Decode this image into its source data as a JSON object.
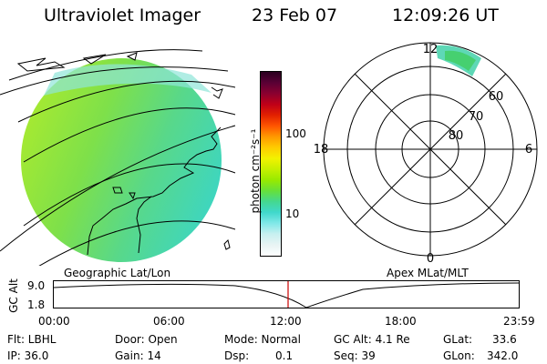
{
  "header": {
    "title": "Ultraviolet Imager",
    "date": "23 Feb 07",
    "time": "12:09:26 UT"
  },
  "colorbar": {
    "label": "photon cm⁻²s⁻¹",
    "ticks": [
      "100",
      "10"
    ],
    "colors": [
      "#2a0020",
      "#5a0035",
      "#8a0030",
      "#c00018",
      "#e22000",
      "#ff5500",
      "#ff9900",
      "#ffcc00",
      "#f2f200",
      "#c6f000",
      "#98ea00",
      "#66e03a",
      "#44d890",
      "#40d8cc",
      "#80e8e8",
      "#c8f0f0",
      "#e8f4f4",
      "#ffffff"
    ]
  },
  "polar_plot": {
    "mlt_labels": {
      "top": "12",
      "bottom": "0",
      "left": "18",
      "right": "6"
    },
    "lat_labels": [
      "60",
      "70",
      "80"
    ]
  },
  "panels": {
    "left_label": "Geographic Lat/Lon",
    "right_label": "Apex MLat/MLT"
  },
  "altitude_plot": {
    "ylabel": "GC Alt",
    "yticks": [
      "9.0",
      "1.8"
    ],
    "xticks": [
      "00:00",
      "06:00",
      "12:00",
      "18:00",
      "23:59"
    ],
    "marker_color": "#cc0000"
  },
  "info": {
    "filter": "Flt: LBHL",
    "ip": "IP: 36.0",
    "door": "Door: Open",
    "gain": "Gain: 14",
    "mode": "Mode: Normal",
    "dsp_label": "Dsp:",
    "dsp_value": "0.1",
    "gc_alt": "GC Alt: 4.1 Re",
    "seq": "Seq: 39",
    "glat_label": "GLat:",
    "glat_value": "33.6",
    "glon_label": "GLon:",
    "glon_value": "342.0"
  }
}
